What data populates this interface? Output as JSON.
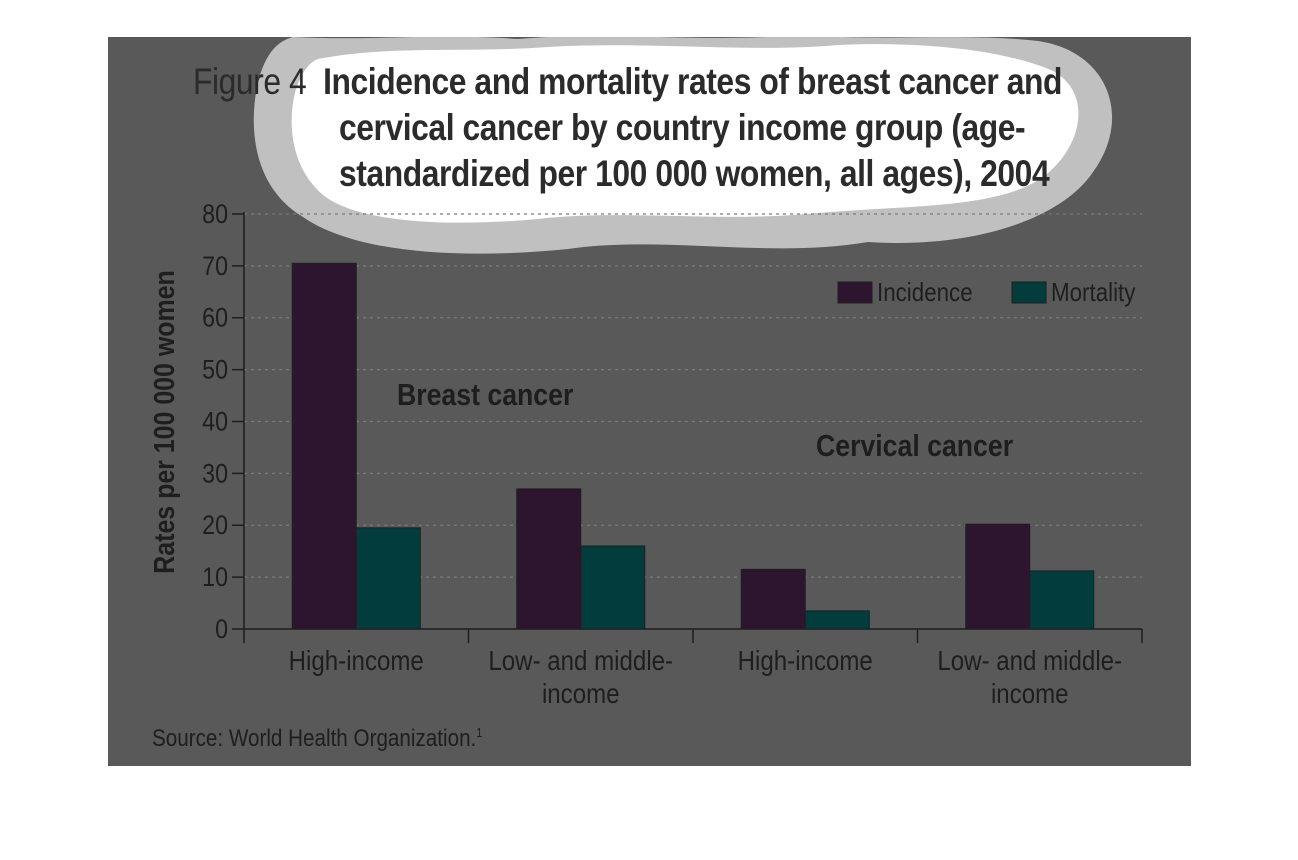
{
  "figure": {
    "label": "Figure 4",
    "title_lines": [
      "Incidence and mortality rates of breast cancer and",
      "cervical cancer by country income group (age-",
      "standardized per 100 000 women, all ages), 2004"
    ],
    "source": "Source: World Health Organization.",
    "source_ref": "1"
  },
  "chart_data": {
    "type": "bar",
    "title": "Incidence and mortality rates of breast cancer and cervical cancer by country income group (age-standardized per 100 000 women, all ages), 2004",
    "ylabel": "Rates per 100 000 women",
    "ylim": [
      0,
      80
    ],
    "yticks": [
      0,
      10,
      20,
      30,
      40,
      50,
      60,
      70,
      80
    ],
    "categories": [
      "High-income",
      "Low- and middle-income",
      "High-income",
      "Low- and middle-income"
    ],
    "category_label_lines": [
      [
        "High-income"
      ],
      [
        "Low- and middle-",
        "income"
      ],
      [
        "High-income"
      ],
      [
        "Low- and middle-",
        "income"
      ]
    ],
    "groups": [
      {
        "label": "Breast cancer",
        "categories": [
          0,
          1
        ]
      },
      {
        "label": "Cervical cancer",
        "categories": [
          2,
          3
        ]
      }
    ],
    "series": [
      {
        "name": "Incidence",
        "color": "#2d1530",
        "values": [
          70.5,
          27,
          11.5,
          20.2
        ]
      },
      {
        "name": "Mortality",
        "color": "#023c3c",
        "values": [
          19.5,
          16,
          3.5,
          11.2
        ]
      }
    ],
    "grid": true,
    "legend": "top-right"
  },
  "colors": {
    "panel": "#595959",
    "text": "#1e1e1e",
    "grid": "#7a7a7a"
  }
}
